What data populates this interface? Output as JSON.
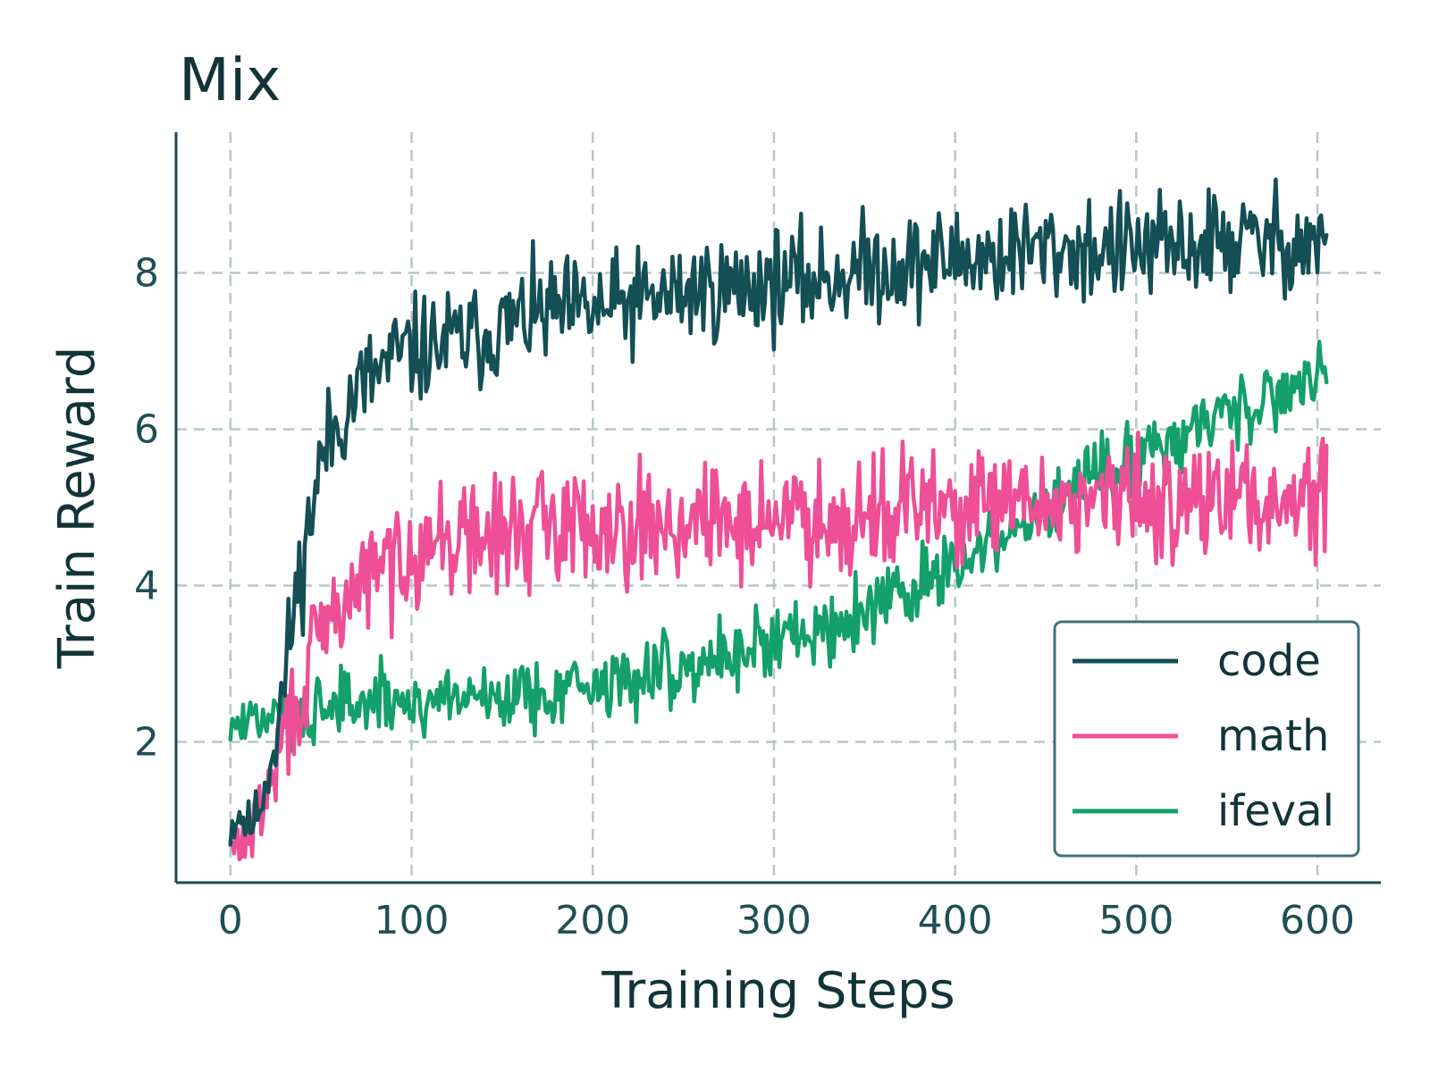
{
  "chart_data": {
    "type": "line",
    "title": "Mix",
    "xlabel": "Training Steps",
    "ylabel": "Train Reward",
    "xlim": [
      -30,
      635
    ],
    "ylim": [
      0.2,
      9.8
    ],
    "xticks": [
      0,
      100,
      200,
      300,
      400,
      500,
      600
    ],
    "yticks": [
      2,
      4,
      6,
      8
    ],
    "grid": true,
    "legend_position": "lower-right",
    "series": [
      {
        "name": "code",
        "color": "#134f55",
        "points": [
          [
            0,
            0.9
          ],
          [
            5,
            1.1
          ],
          [
            10,
            0.9
          ],
          [
            15,
            1.1
          ],
          [
            20,
            1.5
          ],
          [
            25,
            2.1
          ],
          [
            30,
            2.8
          ],
          [
            35,
            3.7
          ],
          [
            40,
            4.3
          ],
          [
            45,
            5.0
          ],
          [
            50,
            5.6
          ],
          [
            55,
            5.9
          ],
          [
            60,
            6.1
          ],
          [
            65,
            6.3
          ],
          [
            70,
            6.5
          ],
          [
            80,
            6.7
          ],
          [
            90,
            6.9
          ],
          [
            100,
            7.0
          ],
          [
            120,
            7.1
          ],
          [
            140,
            7.2
          ],
          [
            160,
            7.4
          ],
          [
            180,
            7.5
          ],
          [
            200,
            7.5
          ],
          [
            220,
            7.6
          ],
          [
            240,
            7.7
          ],
          [
            260,
            7.8
          ],
          [
            280,
            7.8
          ],
          [
            300,
            7.9
          ],
          [
            320,
            7.9
          ],
          [
            340,
            8.0
          ],
          [
            360,
            8.1
          ],
          [
            380,
            8.1
          ],
          [
            400,
            8.2
          ],
          [
            420,
            8.2
          ],
          [
            440,
            8.3
          ],
          [
            460,
            8.3
          ],
          [
            480,
            8.3
          ],
          [
            500,
            8.3
          ],
          [
            520,
            8.3
          ],
          [
            540,
            8.4
          ],
          [
            560,
            8.4
          ],
          [
            580,
            8.4
          ],
          [
            600,
            8.4
          ]
        ]
      },
      {
        "name": "math",
        "color": "#ee4f96",
        "points": [
          [
            0,
            0.6
          ],
          [
            10,
            0.8
          ],
          [
            20,
            1.3
          ],
          [
            30,
            2.1
          ],
          [
            40,
            2.7
          ],
          [
            50,
            3.3
          ],
          [
            60,
            3.7
          ],
          [
            70,
            4.0
          ],
          [
            80,
            4.2
          ],
          [
            90,
            4.3
          ],
          [
            100,
            4.5
          ],
          [
            120,
            4.6
          ],
          [
            140,
            4.6
          ],
          [
            160,
            4.7
          ],
          [
            180,
            4.8
          ],
          [
            200,
            4.8
          ],
          [
            220,
            4.8
          ],
          [
            240,
            4.8
          ],
          [
            260,
            4.8
          ],
          [
            280,
            4.8
          ],
          [
            300,
            4.9
          ],
          [
            320,
            4.9
          ],
          [
            340,
            4.9
          ],
          [
            360,
            5.0
          ],
          [
            380,
            5.0
          ],
          [
            400,
            5.0
          ],
          [
            420,
            5.0
          ],
          [
            440,
            5.0
          ],
          [
            460,
            5.1
          ],
          [
            480,
            5.1
          ],
          [
            500,
            5.1
          ],
          [
            520,
            5.1
          ],
          [
            540,
            5.1
          ],
          [
            560,
            5.1
          ],
          [
            580,
            5.1
          ],
          [
            600,
            5.1
          ]
        ]
      },
      {
        "name": "ifeval",
        "color": "#14a06a",
        "points": [
          [
            0,
            2.2
          ],
          [
            20,
            2.3
          ],
          [
            40,
            2.4
          ],
          [
            60,
            2.5
          ],
          [
            80,
            2.5
          ],
          [
            100,
            2.5
          ],
          [
            120,
            2.6
          ],
          [
            140,
            2.6
          ],
          [
            160,
            2.6
          ],
          [
            180,
            2.7
          ],
          [
            200,
            2.7
          ],
          [
            220,
            2.8
          ],
          [
            240,
            2.9
          ],
          [
            260,
            3.0
          ],
          [
            280,
            3.2
          ],
          [
            300,
            3.3
          ],
          [
            320,
            3.4
          ],
          [
            340,
            3.6
          ],
          [
            360,
            3.8
          ],
          [
            380,
            4.0
          ],
          [
            400,
            4.2
          ],
          [
            420,
            4.5
          ],
          [
            440,
            4.8
          ],
          [
            460,
            5.1
          ],
          [
            480,
            5.4
          ],
          [
            500,
            5.7
          ],
          [
            520,
            5.9
          ],
          [
            540,
            6.1
          ],
          [
            560,
            6.3
          ],
          [
            580,
            6.5
          ],
          [
            600,
            6.7
          ]
        ]
      }
    ]
  }
}
